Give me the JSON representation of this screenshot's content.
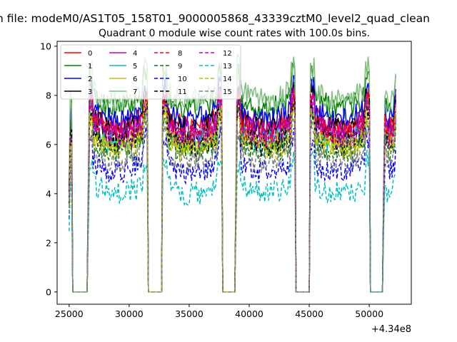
{
  "figure": {
    "suptitle": "n file: modeM0/AS1T05_158T01_9000005868_43339cztM0_level2_quad_clean",
    "offset_label": "+4.34e8"
  },
  "chart_data": {
    "type": "line",
    "title": "Quadrant 0 module wise count rates with 100.0s bins.",
    "xlabel": "",
    "ylabel": "",
    "xlim": [
      24000,
      53500
    ],
    "ylim": [
      -0.5,
      10.2
    ],
    "x_offset": 434000000,
    "x_ticks": [
      25000,
      30000,
      35000,
      40000,
      45000,
      50000
    ],
    "x_tick_labels": [
      "25000",
      "30000",
      "35000",
      "40000",
      "45000",
      "50000"
    ],
    "y_ticks": [
      0,
      2,
      4,
      6,
      8,
      10
    ],
    "y_tick_labels": [
      "0",
      "2",
      "4",
      "6",
      "8",
      "10"
    ],
    "grid": false,
    "legend": {
      "placement": "top-left",
      "columns": 4
    },
    "segments": [
      {
        "start": 25000,
        "end": 25250
      },
      {
        "start": 26600,
        "end": 31550
      },
      {
        "start": 32750,
        "end": 37700
      },
      {
        "start": 38900,
        "end": 43850
      },
      {
        "start": 45050,
        "end": 50000
      },
      {
        "start": 51200,
        "end": 52250
      }
    ],
    "series": [
      {
        "name": "0",
        "color": "#ff0000",
        "dash": "solid",
        "level": 7.2
      },
      {
        "name": "1",
        "color": "#008000",
        "dash": "solid",
        "level": 8.0
      },
      {
        "name": "2",
        "color": "#0000ff",
        "dash": "solid",
        "level": 7.5
      },
      {
        "name": "3",
        "color": "#000000",
        "dash": "solid",
        "level": 7.1
      },
      {
        "name": "4",
        "color": "#bf00bf",
        "dash": "solid",
        "level": 7.0
      },
      {
        "name": "5",
        "color": "#00bfbf",
        "dash": "solid",
        "level": 6.6
      },
      {
        "name": "6",
        "color": "#bfbf00",
        "dash": "solid",
        "level": 6.5
      },
      {
        "name": "7",
        "color": "#7fbf7f",
        "dash": "solid",
        "level": 8.3
      },
      {
        "name": "8",
        "color": "#ff0000",
        "dash": "dashed",
        "level": 6.9
      },
      {
        "name": "9",
        "color": "#008000",
        "dash": "dashed",
        "level": 6.2
      },
      {
        "name": "10",
        "color": "#0000ff",
        "dash": "dashed",
        "level": 5.4
      },
      {
        "name": "11",
        "color": "#000000",
        "dash": "dashed",
        "level": 6.5
      },
      {
        "name": "12",
        "color": "#bf00bf",
        "dash": "dashed",
        "level": 6.8
      },
      {
        "name": "13",
        "color": "#00bfbf",
        "dash": "dashed",
        "level": 4.5
      },
      {
        "name": "14",
        "color": "#bfbf00",
        "dash": "dashed",
        "level": 6.3
      },
      {
        "name": "15",
        "color": "#808080",
        "dash": "dashed",
        "level": 5.8
      }
    ]
  }
}
